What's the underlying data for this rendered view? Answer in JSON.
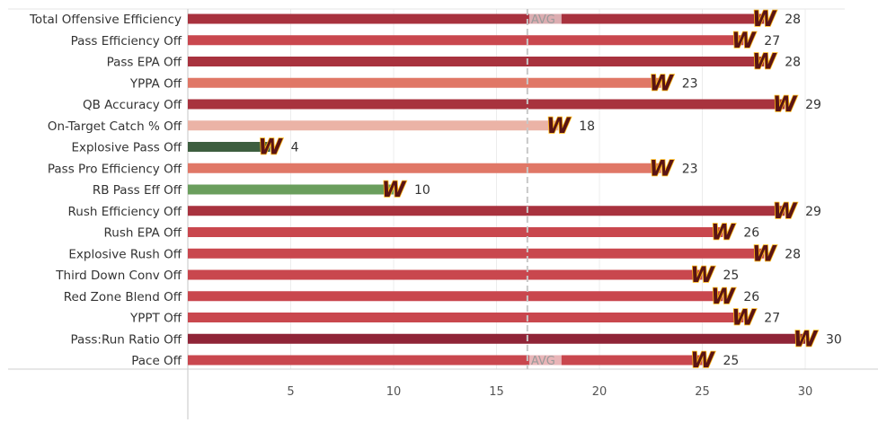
{
  "chart_data": {
    "type": "bar",
    "orientation": "horizontal",
    "categories": [
      "Total Offensive Efficiency",
      "Pass Efficiency Off",
      "Pass EPA Off",
      "YPPA Off",
      "QB Accuracy Off",
      "On-Target Catch % Off",
      "Explosive Pass Off",
      "Pass Pro Efficiency Off",
      "RB Pass Eff Off",
      "Rush Efficiency Off",
      "Rush EPA Off",
      "Explosive Rush Off",
      "Third Down Conv Off",
      "Red Zone Blend Off",
      "YPPT Off",
      "Pass:Run Ratio Off",
      "Pace Off"
    ],
    "values": [
      28,
      27,
      28,
      23,
      29,
      18,
      4,
      23,
      10,
      29,
      26,
      28,
      25,
      26,
      27,
      30,
      25
    ],
    "bar_colors": [
      "#a8323e",
      "#c9474e",
      "#a8323e",
      "#e07766",
      "#a8323e",
      "#ebb3a6",
      "#3d5e3f",
      "#e07766",
      "#6a9e5d",
      "#a8323e",
      "#c9474e",
      "#c9474e",
      "#c9474e",
      "#c9474e",
      "#c9474e",
      "#8f2437",
      "#c9474e"
    ],
    "xlim": [
      0,
      32
    ],
    "xticks": [
      5,
      10,
      15,
      20,
      25,
      30
    ],
    "reference_line": {
      "value": 16.5,
      "label": "AVG"
    },
    "avg_label_rows": [
      0,
      16
    ],
    "grid": true,
    "marker": {
      "text": "W",
      "color": "#5a1414",
      "outline": "#ffb612"
    }
  }
}
